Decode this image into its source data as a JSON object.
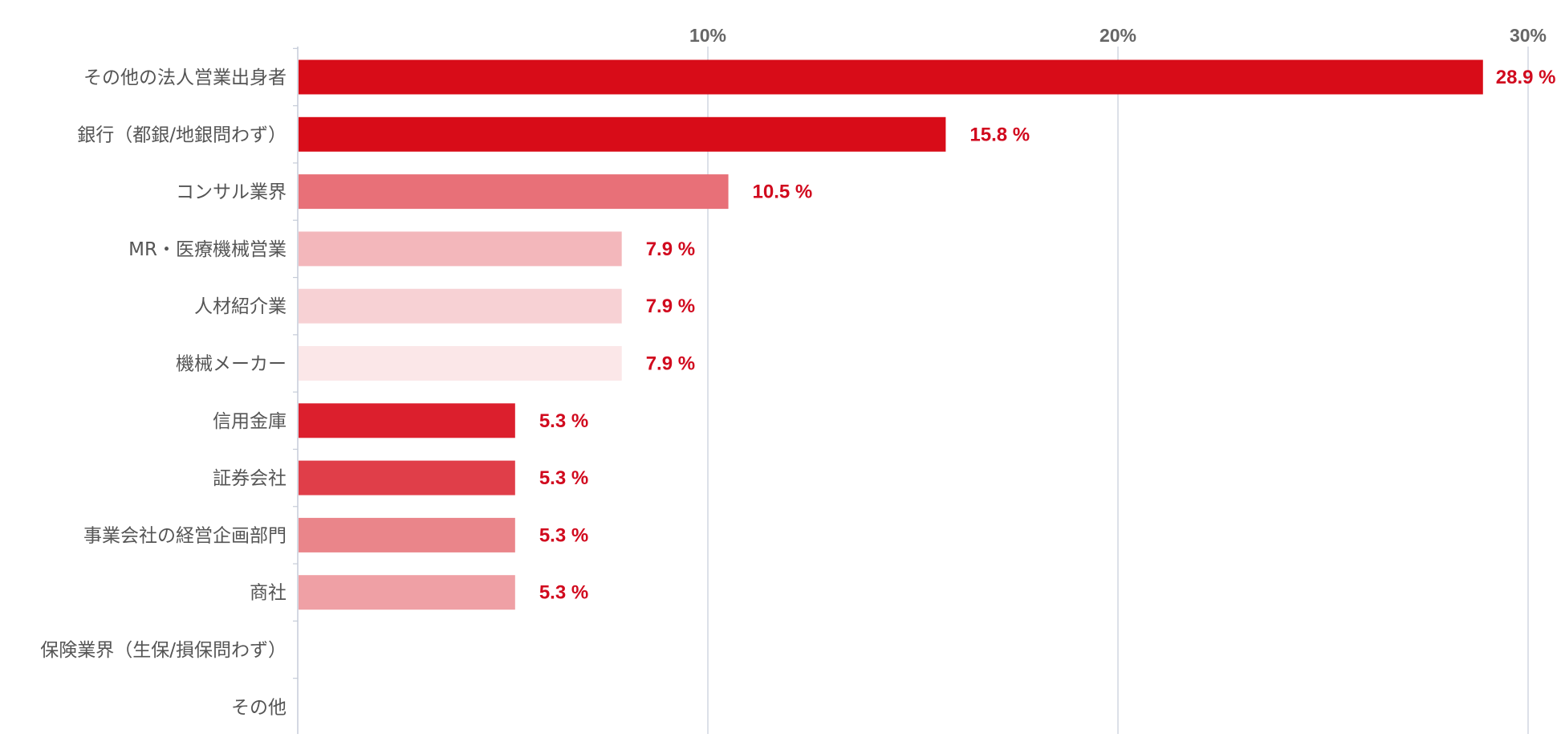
{
  "chart_data": {
    "type": "bar",
    "orientation": "horizontal",
    "title": "",
    "xlabel": "",
    "ylabel": "",
    "xlim": [
      0,
      30
    ],
    "grid": true,
    "legend": "none",
    "x_ticks": [
      "10%",
      "20%",
      "30%"
    ],
    "x_tick_values": [
      10,
      20,
      30
    ],
    "categories": [
      "その他の法人営業出身者",
      "銀行（都銀/地銀問わず）",
      "コンサル業界",
      "MR・医療機械営業",
      "人材紹介業",
      "機械メーカー",
      "信用金庫",
      "証券会社",
      "事業会社の経営企画部門",
      "商社",
      "保険業界（生保/損保問わず）",
      "その他"
    ],
    "values": [
      28.9,
      15.8,
      10.5,
      7.9,
      7.9,
      7.9,
      5.3,
      5.3,
      5.3,
      5.3,
      0,
      0
    ],
    "value_labels": [
      "28.9 %",
      "15.8 %",
      "10.5 %",
      "7.9 %",
      "7.9 %",
      "7.9 %",
      "5.3 %",
      "5.3 %",
      "5.3 %",
      "5.3 %",
      "",
      ""
    ],
    "colors": [
      "#d80c18",
      "#d80c18",
      "#e87078",
      "#f3b7bb",
      "#f7d1d4",
      "#fbe7e8",
      "#dc1f2d",
      "#e03e49",
      "#ea858a",
      "#efa0a5",
      "#ffffff",
      "#ffffff"
    ],
    "value_label_color": "#d10a1e",
    "grid_color": "#c5ccd8"
  }
}
